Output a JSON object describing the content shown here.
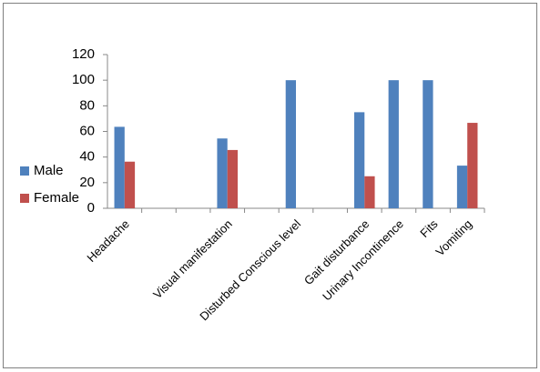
{
  "chart_data": {
    "type": "bar",
    "categories": [
      "Headache",
      null,
      null,
      "Visual manifestation",
      null,
      "Disturbed Conscious level",
      null,
      "Gait disturbance",
      "Urinary Incontinence",
      "Fits",
      "Vomiting"
    ],
    "series": [
      {
        "name": "Male",
        "color": "#4f81bd",
        "values": [
          63.6,
          null,
          null,
          54.5,
          null,
          100,
          null,
          75,
          100,
          100,
          33.3
        ]
      },
      {
        "name": "Female",
        "color": "#c0504d",
        "values": [
          36.4,
          null,
          null,
          45.5,
          null,
          0,
          null,
          25,
          0,
          0,
          66.7
        ]
      }
    ],
    "ylim": [
      0,
      120
    ],
    "yticks": [
      0,
      20,
      40,
      60,
      80,
      100,
      120
    ],
    "grid": false,
    "legend": "left"
  }
}
